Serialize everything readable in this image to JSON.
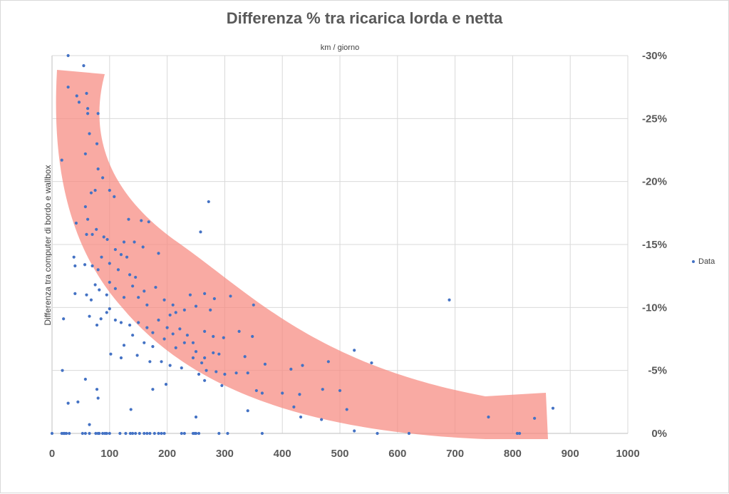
{
  "colors": {
    "points": "#4472c4",
    "band": "#f7897f",
    "grid": "#d9d9d9",
    "axis": "#bfbfbf"
  },
  "chart_data": {
    "type": "scatter",
    "title": "Differenza % tra ricarica lorda e netta",
    "xlabel": "km / giorno",
    "ylabel": "Differenza tra computer di bordo e wallbox",
    "xlim": [
      0,
      1000
    ],
    "ylim": [
      0,
      -30
    ],
    "x_ticks": [
      "0",
      "100",
      "200",
      "300",
      "400",
      "500",
      "600",
      "700",
      "800",
      "900",
      "1000"
    ],
    "y_ticks": [
      "0%",
      "-5%",
      "-10%",
      "-15%",
      "-20%",
      "-25%",
      "-30%"
    ],
    "grid": true,
    "legend": {
      "position": "right",
      "entries": [
        "Data"
      ]
    },
    "series": [
      {
        "name": "Data",
        "points": [
          [
            0,
            0
          ],
          [
            17,
            0
          ],
          [
            20,
            0
          ],
          [
            22,
            0
          ],
          [
            25,
            0
          ],
          [
            30,
            0
          ],
          [
            53,
            0
          ],
          [
            58,
            0
          ],
          [
            65,
            0
          ],
          [
            76,
            0
          ],
          [
            80,
            0
          ],
          [
            82,
            0
          ],
          [
            88,
            0
          ],
          [
            92,
            0
          ],
          [
            95,
            0
          ],
          [
            100,
            0
          ],
          [
            118,
            0
          ],
          [
            128,
            0
          ],
          [
            136,
            0
          ],
          [
            140,
            0
          ],
          [
            145,
            0
          ],
          [
            152,
            0
          ],
          [
            160,
            0
          ],
          [
            165,
            0
          ],
          [
            170,
            0
          ],
          [
            178,
            0
          ],
          [
            185,
            0
          ],
          [
            190,
            0
          ],
          [
            195,
            0
          ],
          [
            225,
            0
          ],
          [
            230,
            0
          ],
          [
            245,
            0
          ],
          [
            248,
            0
          ],
          [
            250,
            0
          ],
          [
            255,
            0
          ],
          [
            290,
            0
          ],
          [
            305,
            0
          ],
          [
            365,
            0
          ],
          [
            565,
            0
          ],
          [
            620,
            0
          ],
          [
            808,
            0
          ],
          [
            812,
            0
          ],
          [
            28,
            -30.0
          ],
          [
            55,
            -29.2
          ],
          [
            28,
            -27.5
          ],
          [
            60,
            -27.0
          ],
          [
            43,
            -26.8
          ],
          [
            47,
            -26.3
          ],
          [
            62,
            -25.8
          ],
          [
            62,
            -25.4
          ],
          [
            80,
            -25.4
          ],
          [
            65,
            -23.8
          ],
          [
            78,
            -23.0
          ],
          [
            58,
            -22.2
          ],
          [
            17,
            -21.7
          ],
          [
            80,
            -21.0
          ],
          [
            88,
            -20.3
          ],
          [
            100,
            -19.3
          ],
          [
            75,
            -19.3
          ],
          [
            68,
            -19.1
          ],
          [
            108,
            -18.8
          ],
          [
            272,
            -18.4
          ],
          [
            58,
            -18.0
          ],
          [
            62,
            -17.0
          ],
          [
            42,
            -16.7
          ],
          [
            133,
            -17.0
          ],
          [
            155,
            -16.9
          ],
          [
            168,
            -16.8
          ],
          [
            77,
            -16.2
          ],
          [
            70,
            -15.8
          ],
          [
            60,
            -15.8
          ],
          [
            90,
            -15.6
          ],
          [
            96,
            -15.4
          ],
          [
            125,
            -15.2
          ],
          [
            143,
            -15.2
          ],
          [
            158,
            -14.8
          ],
          [
            110,
            -14.6
          ],
          [
            120,
            -14.2
          ],
          [
            86,
            -14.0
          ],
          [
            130,
            -14.0
          ],
          [
            185,
            -14.3
          ],
          [
            258,
            -16.0
          ],
          [
            38,
            -14.0
          ],
          [
            40,
            -13.3
          ],
          [
            57,
            -13.4
          ],
          [
            70,
            -13.3
          ],
          [
            80,
            -13.0
          ],
          [
            100,
            -13.5
          ],
          [
            115,
            -13.0
          ],
          [
            135,
            -12.6
          ],
          [
            145,
            -12.4
          ],
          [
            40,
            -11.1
          ],
          [
            60,
            -11.0
          ],
          [
            68,
            -10.6
          ],
          [
            75,
            -11.8
          ],
          [
            82,
            -11.4
          ],
          [
            95,
            -11.0
          ],
          [
            100,
            -12.0
          ],
          [
            110,
            -11.5
          ],
          [
            125,
            -10.8
          ],
          [
            140,
            -11.7
          ],
          [
            150,
            -10.8
          ],
          [
            160,
            -11.3
          ],
          [
            165,
            -10.2
          ],
          [
            180,
            -11.6
          ],
          [
            195,
            -10.6
          ],
          [
            205,
            -9.4
          ],
          [
            210,
            -10.2
          ],
          [
            215,
            -9.6
          ],
          [
            230,
            -9.8
          ],
          [
            240,
            -11.0
          ],
          [
            250,
            -10.1
          ],
          [
            265,
            -11.1
          ],
          [
            275,
            -9.8
          ],
          [
            282,
            -10.7
          ],
          [
            310,
            -10.9
          ],
          [
            350,
            -10.2
          ],
          [
            690,
            -10.6
          ],
          [
            20,
            -9.1
          ],
          [
            65,
            -9.3
          ],
          [
            78,
            -8.6
          ],
          [
            85,
            -9.1
          ],
          [
            95,
            -9.6
          ],
          [
            100,
            -9.9
          ],
          [
            110,
            -9.0
          ],
          [
            120,
            -8.8
          ],
          [
            135,
            -8.6
          ],
          [
            150,
            -8.8
          ],
          [
            165,
            -8.4
          ],
          [
            175,
            -8.0
          ],
          [
            185,
            -9.0
          ],
          [
            200,
            -8.4
          ],
          [
            210,
            -7.9
          ],
          [
            222,
            -8.3
          ],
          [
            235,
            -7.8
          ],
          [
            245,
            -7.2
          ],
          [
            265,
            -8.1
          ],
          [
            280,
            -7.7
          ],
          [
            298,
            -7.6
          ],
          [
            325,
            -8.1
          ],
          [
            348,
            -7.7
          ],
          [
            125,
            -7.0
          ],
          [
            140,
            -7.8
          ],
          [
            160,
            -7.2
          ],
          [
            175,
            -6.9
          ],
          [
            195,
            -7.5
          ],
          [
            215,
            -6.8
          ],
          [
            230,
            -7.2
          ],
          [
            250,
            -6.5
          ],
          [
            265,
            -6.0
          ],
          [
            280,
            -6.4
          ],
          [
            290,
            -6.3
          ],
          [
            335,
            -6.1
          ],
          [
            525,
            -6.6
          ],
          [
            102,
            -6.3
          ],
          [
            120,
            -6.0
          ],
          [
            148,
            -6.2
          ],
          [
            170,
            -5.7
          ],
          [
            190,
            -5.7
          ],
          [
            205,
            -5.4
          ],
          [
            225,
            -5.2
          ],
          [
            245,
            -6.0
          ],
          [
            260,
            -5.6
          ],
          [
            268,
            -5.0
          ],
          [
            285,
            -4.9
          ],
          [
            300,
            -4.7
          ],
          [
            320,
            -4.8
          ],
          [
            340,
            -4.8
          ],
          [
            370,
            -5.5
          ],
          [
            415,
            -5.1
          ],
          [
            435,
            -5.4
          ],
          [
            480,
            -5.7
          ],
          [
            555,
            -5.6
          ],
          [
            18,
            -5.0
          ],
          [
            58,
            -4.3
          ],
          [
            78,
            -3.5
          ],
          [
            175,
            -3.5
          ],
          [
            198,
            -3.9
          ],
          [
            255,
            -4.7
          ],
          [
            265,
            -4.2
          ],
          [
            295,
            -3.8
          ],
          [
            355,
            -3.4
          ],
          [
            365,
            -3.2
          ],
          [
            400,
            -3.2
          ],
          [
            430,
            -3.1
          ],
          [
            470,
            -3.5
          ],
          [
            500,
            -3.4
          ],
          [
            28,
            -2.4
          ],
          [
            45,
            -2.5
          ],
          [
            80,
            -2.8
          ],
          [
            137,
            -1.9
          ],
          [
            340,
            -1.8
          ],
          [
            420,
            -2.1
          ],
          [
            512,
            -1.9
          ],
          [
            870,
            -2.0
          ],
          [
            250,
            -1.3
          ],
          [
            432,
            -1.3
          ],
          [
            468,
            -1.1
          ],
          [
            758,
            -1.3
          ],
          [
            838,
            -1.2
          ],
          [
            65,
            -0.7
          ],
          [
            525,
            -0.2
          ]
        ]
      }
    ]
  }
}
